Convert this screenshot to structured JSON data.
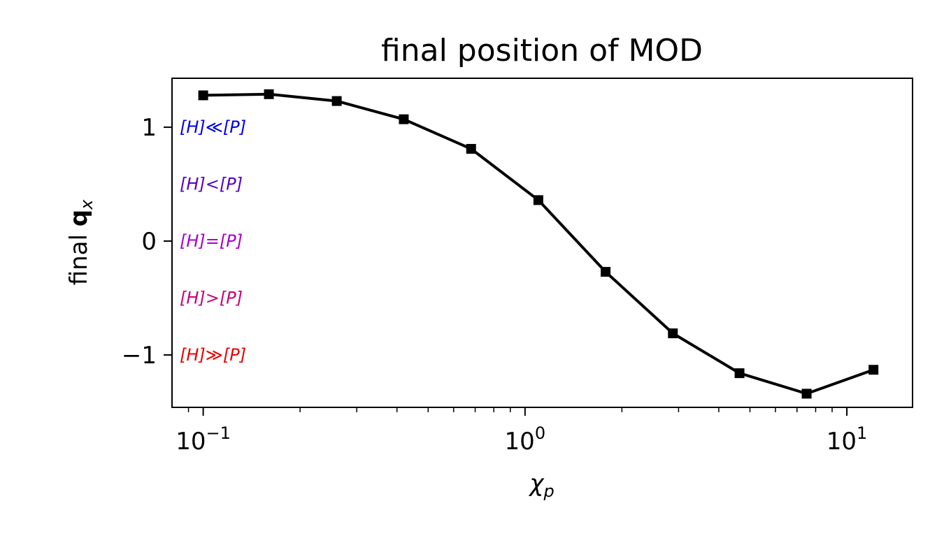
{
  "chart_data": {
    "type": "line",
    "title": "final position of MOD",
    "xlabel": "χ",
    "xlabel_sub": "p",
    "ylabel": "final ",
    "ylabel_bold": "q",
    "ylabel_sub": "x",
    "xscale": "log",
    "xlim": [
      0.08,
      16
    ],
    "ylim": [
      -1.46,
      1.43
    ],
    "grid": false,
    "x": [
      0.1,
      0.16,
      0.26,
      0.42,
      0.68,
      1.1,
      1.78,
      2.88,
      4.64,
      7.5,
      12.1
    ],
    "series": [
      {
        "color": "#000000",
        "marker": "square",
        "values": [
          1.28,
          1.29,
          1.23,
          1.07,
          0.81,
          0.36,
          -0.27,
          -0.81,
          -1.16,
          -1.34,
          -1.13
        ]
      }
    ],
    "xticks": [
      {
        "value": 0.1,
        "base": "10",
        "exp": "−1"
      },
      {
        "value": 1,
        "base": "10",
        "exp": "0"
      },
      {
        "value": 10,
        "base": "10",
        "exp": "1"
      }
    ],
    "yticks": [
      {
        "value": 1,
        "label": "1"
      },
      {
        "value": 0,
        "label": "0"
      },
      {
        "value": -1,
        "label": "−1"
      }
    ],
    "annotations": [
      {
        "text": "[H]≪[P]",
        "y": 1.0,
        "color": "#0000ee"
      },
      {
        "text": "[H]<[P]",
        "y": 0.5,
        "color": "#5500cc"
      },
      {
        "text": "[H]=[P]",
        "y": 0.0,
        "color": "#aa00cc"
      },
      {
        "text": "[H]>[P]",
        "y": -0.5,
        "color": "#cc0077"
      },
      {
        "text": "[H]≫[P]",
        "y": -1.0,
        "color": "#ee0000"
      }
    ]
  }
}
